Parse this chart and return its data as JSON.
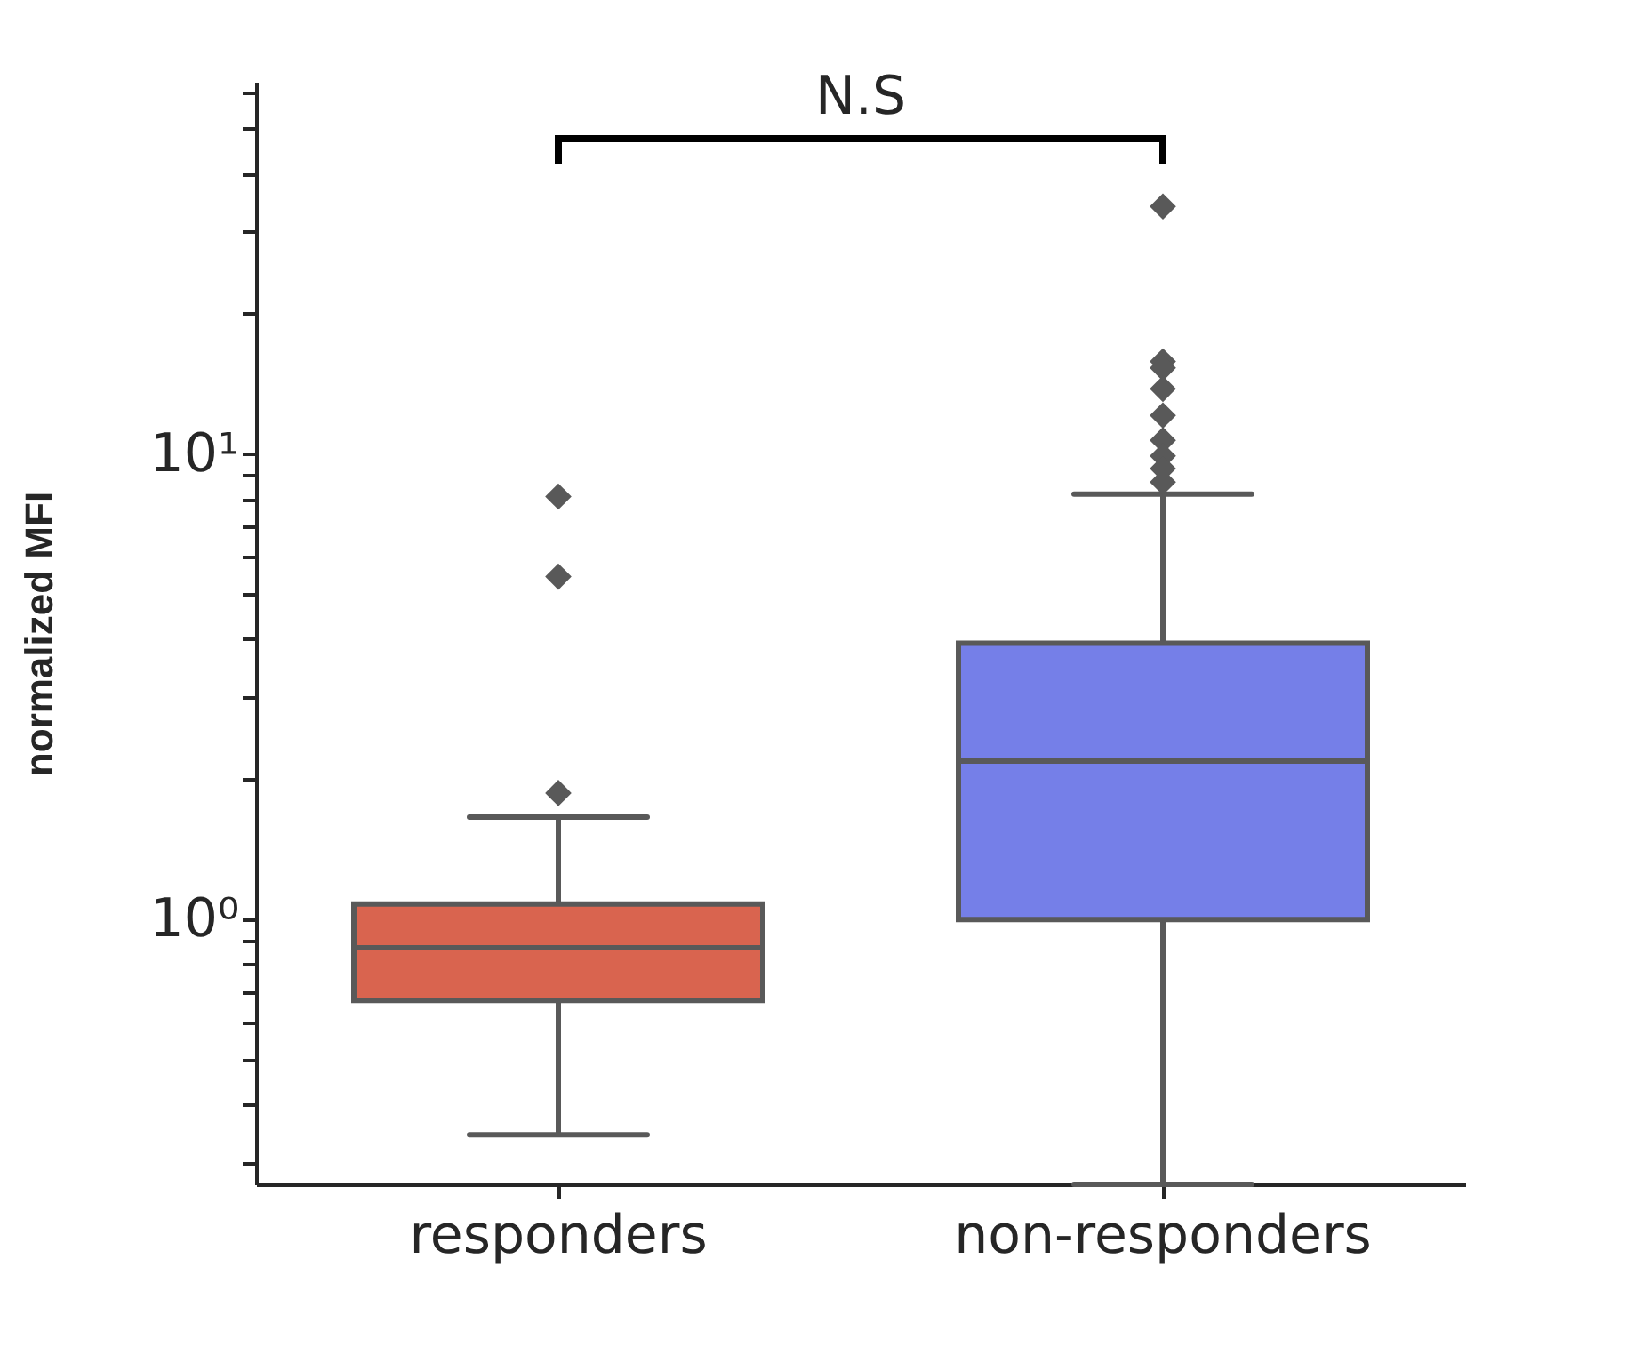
{
  "chart_data": {
    "type": "box",
    "ylabel": "normalized MFI",
    "categories": [
      "responders",
      "non-responders"
    ],
    "series": [
      {
        "color": "#d9644f",
        "boxes": [
          {
            "low": 0.345,
            "q1": 0.67,
            "median": 0.87,
            "q3": 1.08,
            "high": 1.66,
            "outliers": [
              8.1,
              5.45,
              1.87
            ]
          },
          null
        ]
      },
      {
        "color": "#757fe8",
        "boxes": [
          null,
          {
            "low": 0.27,
            "q1": 1.0,
            "median": 2.19,
            "q3": 3.92,
            "high": 8.2,
            "outliers": [
              34,
              15.8,
              15.3,
              13.8,
              12.1,
              10.7,
              9.9,
              9.3,
              8.7
            ]
          }
        ]
      }
    ],
    "log": true,
    "ylim": [
      0.27,
      63
    ],
    "yticks": [
      {
        "value": 0.3,
        "label": null
      },
      {
        "value": 0.4,
        "label": null
      },
      {
        "value": 0.5,
        "label": null
      },
      {
        "value": 0.6,
        "label": null
      },
      {
        "value": 0.7,
        "label": null
      },
      {
        "value": 0.8,
        "label": null
      },
      {
        "value": 0.9,
        "label": null
      },
      {
        "value": 1,
        "label": "10⁰"
      },
      {
        "value": 2,
        "label": null
      },
      {
        "value": 3,
        "label": null
      },
      {
        "value": 4,
        "label": null
      },
      {
        "value": 5,
        "label": null
      },
      {
        "value": 6,
        "label": null
      },
      {
        "value": 7,
        "label": null
      },
      {
        "value": 8,
        "label": null
      },
      {
        "value": 9,
        "label": null
      },
      {
        "value": 10,
        "label": "10¹"
      },
      {
        "value": 20,
        "label": null
      },
      {
        "value": 30,
        "label": null
      },
      {
        "value": 40,
        "label": null
      },
      {
        "value": 50,
        "label": null
      },
      {
        "value": 60,
        "label": null
      }
    ],
    "annotations": [
      "N.S"
    ],
    "grid": false,
    "marker": "diamond"
  }
}
